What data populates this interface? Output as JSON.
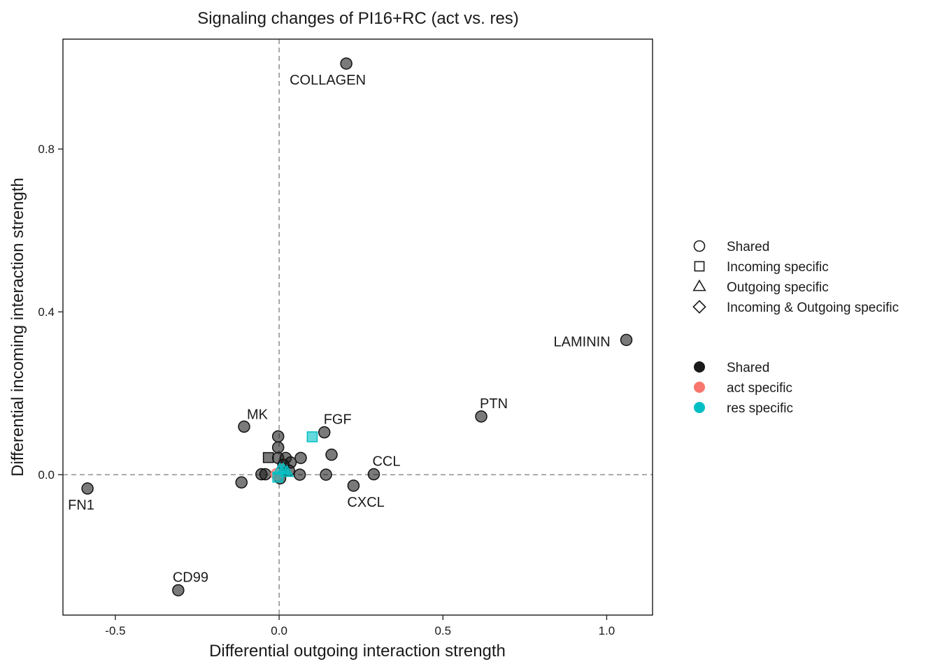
{
  "chart_data": {
    "type": "scatter",
    "title": "Signaling changes of PI16+RC (act vs. res)",
    "xlabel": "Differential outgoing interaction strength",
    "ylabel": "Differential incoming interaction strength",
    "xlim": [
      -0.66,
      1.14
    ],
    "ylim": [
      -0.345,
      1.07
    ],
    "x_ticks": [
      -0.5,
      0.0,
      0.5,
      1.0
    ],
    "x_tick_labels": [
      "-0.5",
      "0.0",
      "0.5",
      "1.0"
    ],
    "y_ticks": [
      0.0,
      0.4,
      0.8
    ],
    "y_tick_labels": [
      "0.0",
      "0.4",
      "0.8"
    ],
    "grid": false,
    "reference_lines": {
      "x": 0,
      "y": 0
    },
    "legend_placement": "right",
    "colors": {
      "Shared": "#1a1a1a",
      "act specific": "#F8766D",
      "res specific": "#00BFC4"
    },
    "legend_shape": {
      "items": [
        {
          "label": "Shared",
          "shape": "circle"
        },
        {
          "label": "Incoming specific",
          "shape": "square"
        },
        {
          "label": "Outgoing specific",
          "shape": "triangle"
        },
        {
          "label": "Incoming & Outgoing specific",
          "shape": "diamond"
        }
      ]
    },
    "legend_color": {
      "items": [
        {
          "label": "Shared",
          "color": "#1a1a1a"
        },
        {
          "label": "act specific",
          "color": "#F8766D"
        },
        {
          "label": "res specific",
          "color": "#00BFC4"
        }
      ]
    },
    "points": [
      {
        "x": 0.205,
        "y": 1.01,
        "shape": "circle",
        "group": "Shared",
        "label": "COLLAGEN"
      },
      {
        "x": 1.06,
        "y": 0.331,
        "shape": "circle",
        "group": "Shared",
        "label": "LAMININ"
      },
      {
        "x": 0.617,
        "y": 0.143,
        "shape": "circle",
        "group": "Shared",
        "label": "PTN"
      },
      {
        "x": -0.107,
        "y": 0.118,
        "shape": "circle",
        "group": "Shared",
        "label": "MK"
      },
      {
        "x": 0.138,
        "y": 0.104,
        "shape": "circle",
        "group": "Shared",
        "label": "FGF"
      },
      {
        "x": 0.289,
        "y": 0.001,
        "shape": "circle",
        "group": "Shared",
        "label": "CCL"
      },
      {
        "x": 0.227,
        "y": -0.027,
        "shape": "circle",
        "group": "Shared",
        "label": "CXCL"
      },
      {
        "x": -0.585,
        "y": -0.034,
        "shape": "circle",
        "group": "Shared",
        "label": "FN1"
      },
      {
        "x": -0.308,
        "y": -0.284,
        "shape": "circle",
        "group": "Shared",
        "label": "CD99"
      },
      {
        "x": -0.115,
        "y": -0.019,
        "shape": "circle",
        "group": "Shared"
      },
      {
        "x": 0.16,
        "y": 0.049,
        "shape": "circle",
        "group": "Shared"
      },
      {
        "x": 0.143,
        "y": 0.0,
        "shape": "circle",
        "group": "Shared"
      },
      {
        "x": 0.066,
        "y": 0.041,
        "shape": "circle",
        "group": "Shared"
      },
      {
        "x": 0.063,
        "y": 0.0,
        "shape": "circle",
        "group": "Shared"
      },
      {
        "x": -0.003,
        "y": 0.094,
        "shape": "circle",
        "group": "Shared"
      },
      {
        "x": -0.003,
        "y": 0.067,
        "shape": "circle",
        "group": "Shared"
      },
      {
        "x": -0.054,
        "y": 0.001,
        "shape": "circle",
        "group": "Shared"
      },
      {
        "x": -0.042,
        "y": 0.001,
        "shape": "circle",
        "group": "Shared"
      },
      {
        "x": -0.003,
        "y": 0.041,
        "shape": "circle",
        "group": "Shared"
      },
      {
        "x": 0.02,
        "y": 0.041,
        "shape": "circle",
        "group": "Shared"
      },
      {
        "x": 0.035,
        "y": 0.03,
        "shape": "circle",
        "group": "Shared"
      },
      {
        "x": 0.03,
        "y": 0.01,
        "shape": "circle",
        "group": "Shared"
      },
      {
        "x": 0.003,
        "y": -0.009,
        "shape": "circle",
        "group": "Shared"
      },
      {
        "x": 0.013,
        "y": 0.024,
        "shape": "circle",
        "group": "Shared"
      },
      {
        "x": -0.033,
        "y": 0.042,
        "shape": "square",
        "group": "Shared"
      },
      {
        "x": 0.101,
        "y": 0.093,
        "shape": "square",
        "group": "res specific"
      },
      {
        "x": -0.008,
        "y": 0.001,
        "shape": "circle",
        "group": "act specific"
      },
      {
        "x": -0.004,
        "y": -0.006,
        "shape": "square",
        "group": "res specific"
      },
      {
        "x": 0.002,
        "y": 0.012,
        "shape": "triangle",
        "group": "res specific"
      },
      {
        "x": 0.013,
        "y": 0.012,
        "shape": "triangle",
        "group": "res specific"
      },
      {
        "x": 0.024,
        "y": 0.006,
        "shape": "triangle",
        "group": "res specific"
      }
    ]
  }
}
